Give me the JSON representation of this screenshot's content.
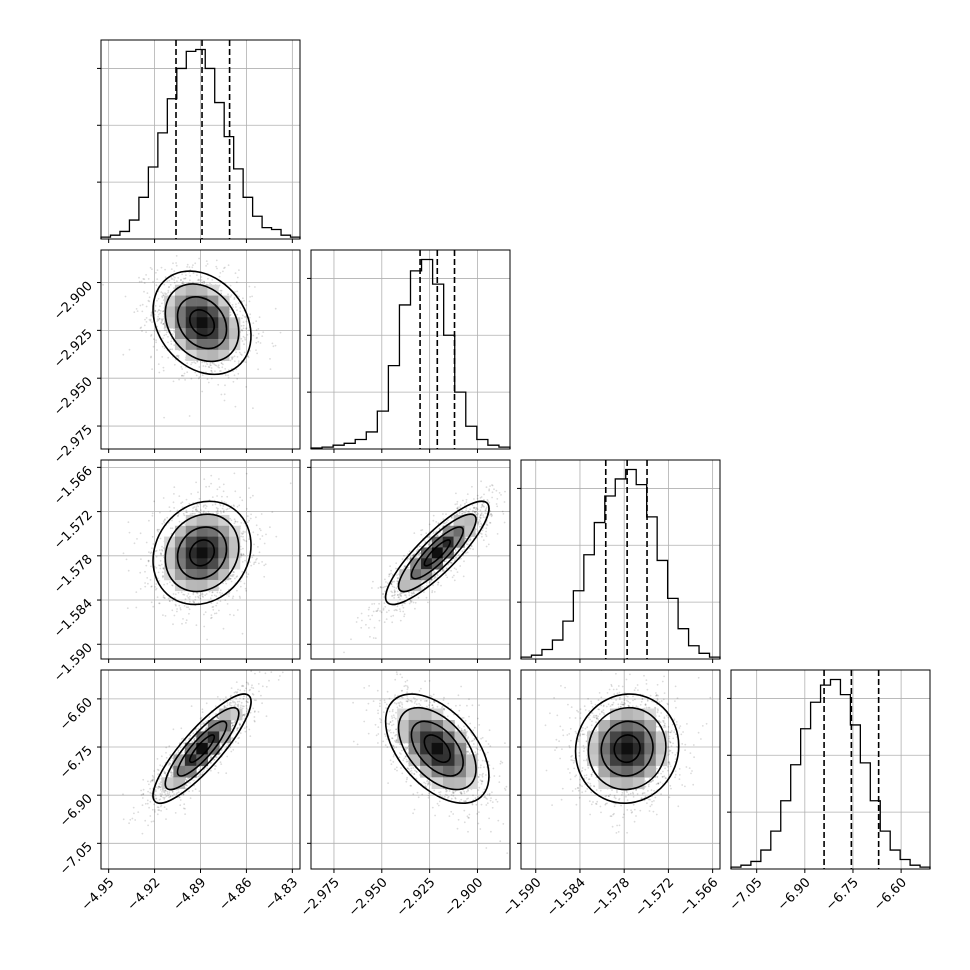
{
  "chart_data": {
    "type": "corner",
    "grid": true,
    "quantile_lines": "dashed",
    "parameters": [
      {
        "range": [
          -4.955,
          -4.825
        ],
        "xticks": [
          -4.95,
          -4.92,
          -4.89,
          -4.86,
          -4.83
        ],
        "xtick_labels": [
          "−4.95",
          "−4.92",
          "−4.89",
          "−4.86",
          "−4.83"
        ],
        "yticks": [],
        "ytick_labels": [],
        "quantiles": [
          -4.906,
          -4.889,
          -4.871
        ],
        "histogram": [
          0.01,
          0.02,
          0.04,
          0.1,
          0.22,
          0.38,
          0.56,
          0.74,
          0.9,
          0.99,
          1.0,
          0.9,
          0.72,
          0.54,
          0.37,
          0.22,
          0.12,
          0.06,
          0.05,
          0.02,
          0.01
        ],
        "hist_ylim": [
          0,
          1.05
        ]
      },
      {
        "range": [
          -2.987,
          -2.883
        ],
        "xticks": [
          -2.975,
          -2.95,
          -2.925,
          -2.9
        ],
        "xtick_labels": [
          "−2.975",
          "−2.950",
          "−2.925",
          "−2.900"
        ],
        "yticks": [
          -2.9,
          -2.925,
          -2.95,
          -2.975
        ],
        "ytick_labels": [
          "−2.900",
          "−2.925",
          "−2.950",
          "−2.975"
        ],
        "quantiles": [
          -2.93,
          -2.921,
          -2.912
        ],
        "histogram": [
          0.005,
          0.01,
          0.02,
          0.03,
          0.05,
          0.09,
          0.2,
          0.44,
          0.76,
          0.94,
          1.0,
          0.87,
          0.6,
          0.3,
          0.12,
          0.05,
          0.02,
          0.01
        ],
        "hist_ylim": [
          0,
          1.05
        ]
      },
      {
        "range": [
          -1.592,
          -1.565
        ],
        "xticks": [
          -1.59,
          -1.584,
          -1.578,
          -1.572,
          -1.566
        ],
        "xtick_labels": [
          "−1.590",
          "−1.584",
          "−1.578",
          "−1.572",
          "−1.566"
        ],
        "yticks": [
          -1.566,
          -1.572,
          -1.578,
          -1.584,
          -1.59
        ],
        "ytick_labels": [
          "−1.566",
          "−1.572",
          "−1.578",
          "−1.584",
          "−1.590"
        ],
        "quantiles": [
          -1.5805,
          -1.5776,
          -1.5749
        ],
        "histogram": [
          0.01,
          0.02,
          0.05,
          0.1,
          0.2,
          0.36,
          0.55,
          0.72,
          0.86,
          0.95,
          1.0,
          0.92,
          0.75,
          0.52,
          0.32,
          0.16,
          0.07,
          0.03,
          0.01
        ],
        "hist_ylim": [
          0,
          1.05
        ]
      },
      {
        "range": [
          -7.13,
          -6.51
        ],
        "xticks": [
          -7.05,
          -6.9,
          -6.75,
          -6.6
        ],
        "xtick_labels": [
          "−7.05",
          "−6.90",
          "−6.75",
          "−6.60"
        ],
        "yticks": [
          -6.6,
          -6.75,
          -6.9,
          -7.05
        ],
        "ytick_labels": [
          "−6.60",
          "−6.75",
          "−6.90",
          "−7.05"
        ],
        "quantiles": [
          -6.84,
          -6.755,
          -6.67
        ],
        "histogram": [
          0.01,
          0.02,
          0.04,
          0.1,
          0.2,
          0.36,
          0.55,
          0.74,
          0.88,
          0.97,
          1.0,
          0.92,
          0.76,
          0.56,
          0.36,
          0.2,
          0.1,
          0.05,
          0.02,
          0.01
        ],
        "hist_ylim": [
          0,
          1.05
        ]
      }
    ],
    "pairs": [
      {
        "x": 0,
        "y": 1,
        "mean": [
          -4.889,
          -2.921
        ],
        "sd": [
          0.016,
          0.0135
        ],
        "rho": -0.25
      },
      {
        "x": 0,
        "y": 2,
        "mean": [
          -4.889,
          -1.5776
        ],
        "sd": [
          0.016,
          0.0035
        ],
        "rho": 0.15
      },
      {
        "x": 1,
        "y": 2,
        "mean": [
          -2.921,
          -1.5776
        ],
        "sd": [
          0.0135,
          0.0035
        ],
        "rho": 0.86
      },
      {
        "x": 0,
        "y": 3,
        "mean": [
          -4.889,
          -6.755
        ],
        "sd": [
          0.016,
          0.085
        ],
        "rho": 0.86
      },
      {
        "x": 1,
        "y": 3,
        "mean": [
          -2.921,
          -6.755
        ],
        "sd": [
          0.0135,
          0.085
        ],
        "rho": -0.5
      },
      {
        "x": 2,
        "y": 3,
        "mean": [
          -1.5776,
          -6.755
        ],
        "sd": [
          0.0035,
          0.085
        ],
        "rho": 0.05
      }
    ],
    "contour_levels_sigma": [
      0.5,
      1.0,
      1.5,
      2.0
    ]
  }
}
